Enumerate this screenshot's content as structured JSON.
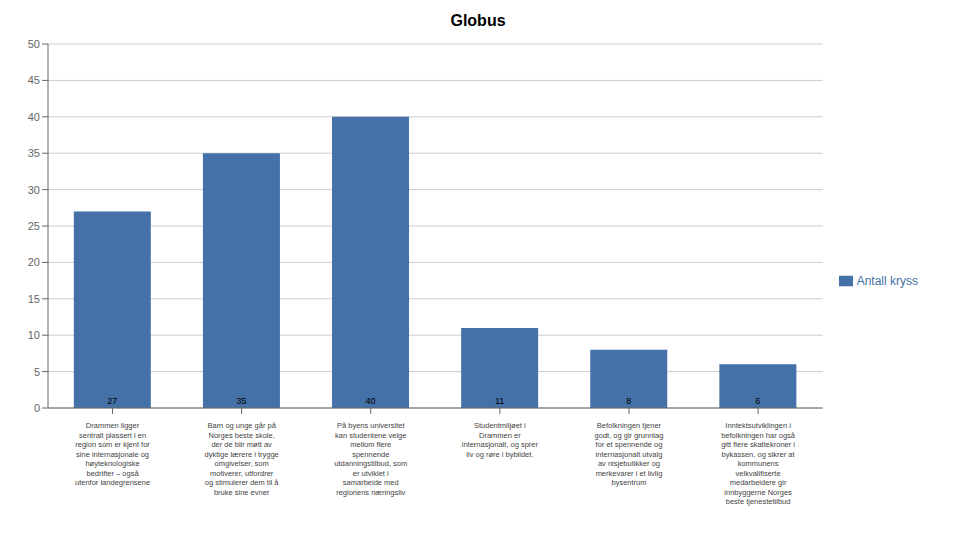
{
  "chart_data": {
    "type": "bar",
    "title": "Globus",
    "categories": [
      "Drammen ligger\nsentralt plassert i en\nregion som er kjent for\nsine internasjonale og\nhøyteknologiske\nbedrifter – også\nutenfor landegrensene",
      "Barn og unge går på\nNorges beste skole,\nder de blir møtt av\ndyktige lærere i trygge\nomgivelser, som\nmotiverer, utfordrer\nog stimulerer dem til å\nbruke sine evner",
      "På byens universitet\nkan studentene velge\nmellom flere\nspennende\nutdanningstilbud, som\ner utviklet i\nsamarbeide med\nregionens næringsliv",
      "Studentmiljøet i\nDrammen er\ninternasjonalt, og sprer\nliv og røre i bybildet.",
      "Befolkningen tjener\ngodt, og gir grunnlag\nfor et spennende og\ninternasjonalt utvalg\nav nisjebutikker og\nmerkevarer i et livlig\nbysentrum",
      "Inntektsutviklingen i\nbefolkningen har også\ngitt flere skattekroner i\nbykassen, og sikrer at\nkommunens\nvelkvalifiserte\nmedarbeidere gir\ninnbyggerne Norges\nbeste tjenestetilbud"
    ],
    "series": [
      {
        "name": "Antall kryss",
        "color": "#4472A8",
        "values": [
          27,
          35,
          40,
          11,
          8,
          6
        ]
      }
    ],
    "ylim": [
      0,
      50
    ],
    "yticks": [
      0,
      5,
      10,
      15,
      20,
      25,
      30,
      35,
      40,
      45,
      50
    ],
    "grid": true,
    "legend": "right",
    "data_labels": true
  }
}
